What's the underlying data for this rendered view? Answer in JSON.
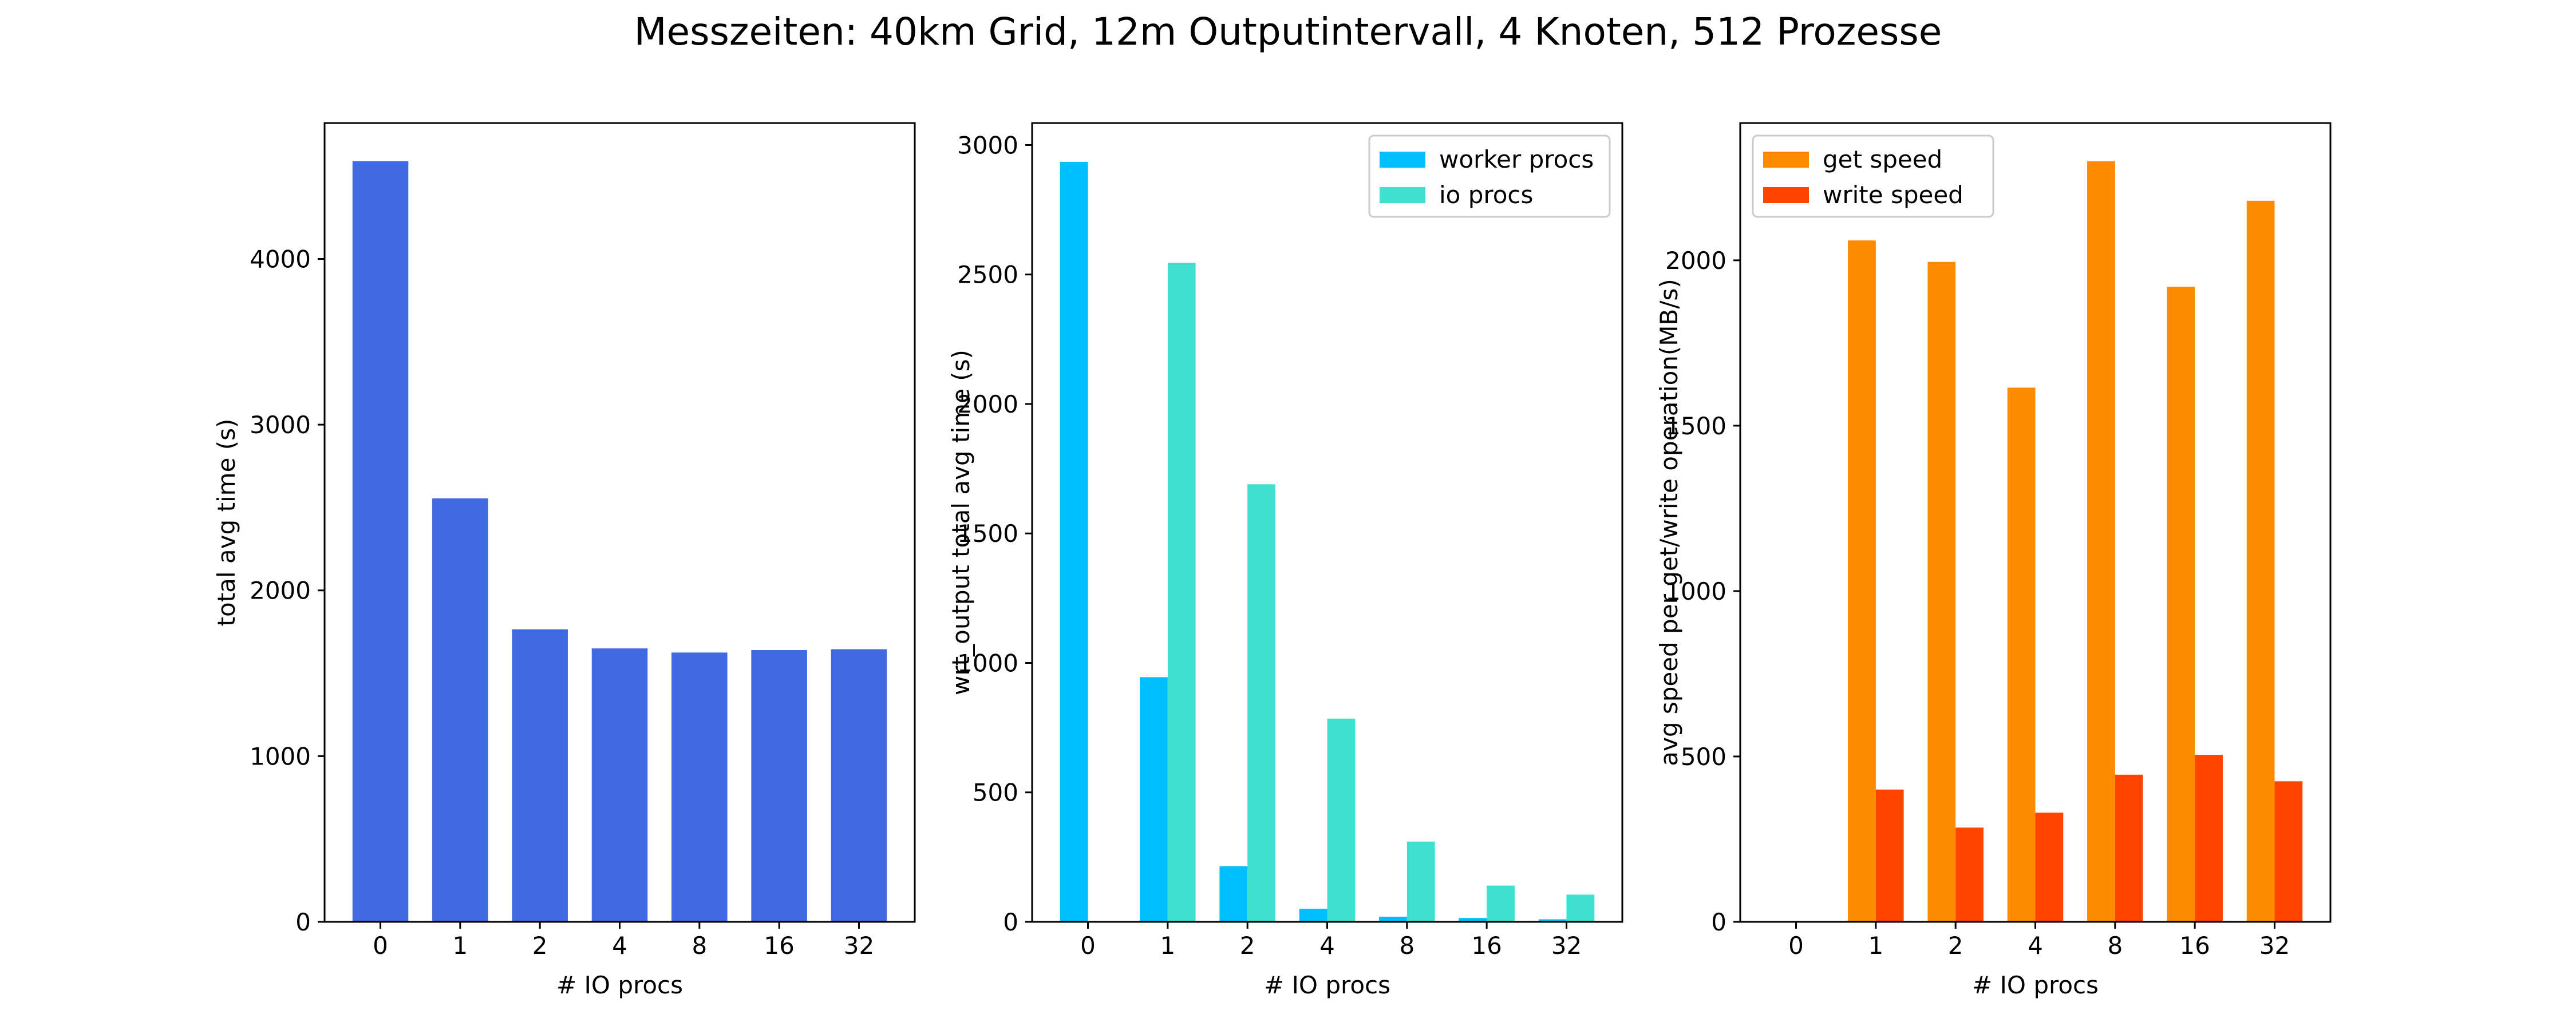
{
  "figure": {
    "title": "Messzeiten: 40km Grid, 12m Outputintervall, 4 Knoten, 512 Prozesse"
  },
  "chart_data": [
    {
      "type": "bar",
      "categories": [
        "0",
        "1",
        "2",
        "4",
        "8",
        "16",
        "32"
      ],
      "series": [
        {
          "values": [
            4590,
            2555,
            1765,
            1650,
            1625,
            1640,
            1645
          ],
          "color": "#4169E1"
        }
      ],
      "xlabel": "# IO procs",
      "ylabel": "total avg time (s)",
      "ylim": [
        0,
        4820
      ],
      "yticks": [
        0,
        1000,
        2000,
        3000,
        4000
      ],
      "grid": false,
      "legend": "none"
    },
    {
      "type": "bar",
      "categories": [
        "0",
        "1",
        "2",
        "4",
        "8",
        "16",
        "32"
      ],
      "series": [
        {
          "name": "worker procs",
          "values": [
            2935,
            945,
            215,
            50,
            20,
            15,
            10
          ],
          "color": "#00BFFF"
        },
        {
          "name": "io procs",
          "values": [
            0,
            2545,
            1690,
            785,
            310,
            140,
            105
          ],
          "color": "#40E0D0"
        }
      ],
      "xlabel": "# IO procs",
      "ylabel": "wrt_output total avg time (s)",
      "ylim": [
        0,
        3085
      ],
      "yticks": [
        0,
        500,
        1000,
        1500,
        2000,
        2500,
        3000
      ],
      "grid": false,
      "legend": "top-right"
    },
    {
      "type": "bar",
      "categories": [
        "0",
        "1",
        "2",
        "4",
        "8",
        "16",
        "32"
      ],
      "series": [
        {
          "name": "get speed",
          "values": [
            0,
            2060,
            1995,
            1615,
            2300,
            1920,
            2180
          ],
          "color": "#FF8C00"
        },
        {
          "name": "write speed",
          "values": [
            0,
            400,
            285,
            330,
            445,
            505,
            425
          ],
          "color": "#FF4500"
        }
      ],
      "xlabel": "# IO procs",
      "ylabel": "avg speed per get/write operation(MB/s)",
      "ylim": [
        0,
        2415
      ],
      "yticks": [
        0,
        500,
        1000,
        1500,
        2000
      ],
      "grid": false,
      "legend": "top-left"
    }
  ]
}
